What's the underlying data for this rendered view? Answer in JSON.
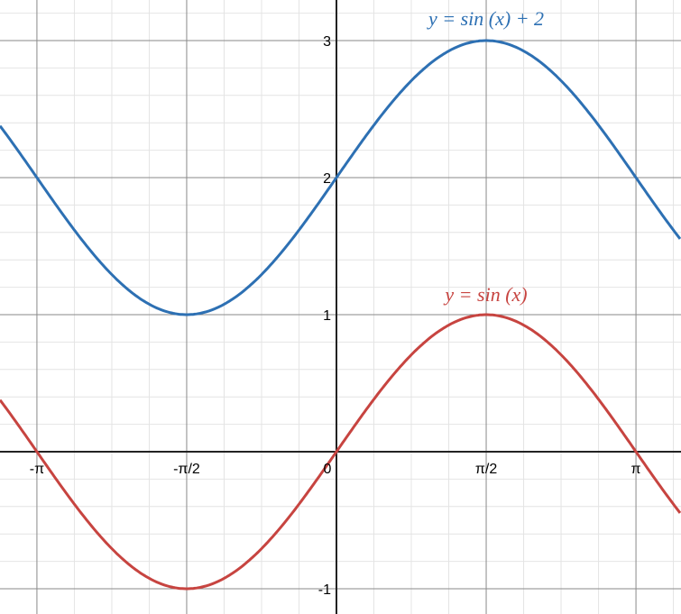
{
  "chart_data": {
    "type": "line",
    "xlim": [
      -3.52,
      3.57
    ],
    "ylim": [
      -1.18,
      3.3
    ],
    "grid": true,
    "x_ticks": [
      {
        "value": -3.14159,
        "label": "-π"
      },
      {
        "value": -1.5708,
        "label": "-π/2"
      },
      {
        "value": 0,
        "label": "0"
      },
      {
        "value": 1.5708,
        "label": "π/2"
      },
      {
        "value": 3.14159,
        "label": "π"
      }
    ],
    "y_ticks": [
      {
        "value": -1,
        "label": "-1"
      },
      {
        "value": 1,
        "label": "1"
      },
      {
        "value": 2,
        "label": "2"
      },
      {
        "value": 3,
        "label": "3"
      }
    ],
    "x_minor_step": 0.3927,
    "y_minor_step": 0.2,
    "series": [
      {
        "name": "y = sin (x) + 2",
        "function": "sin(x)+2",
        "color": "#2d70b3",
        "label_at": [
          1.5708,
          3
        ]
      },
      {
        "name": "y = sin (x)",
        "function": "sin(x)",
        "color": "#c74440",
        "label_at": [
          1.5708,
          1
        ]
      }
    ]
  }
}
